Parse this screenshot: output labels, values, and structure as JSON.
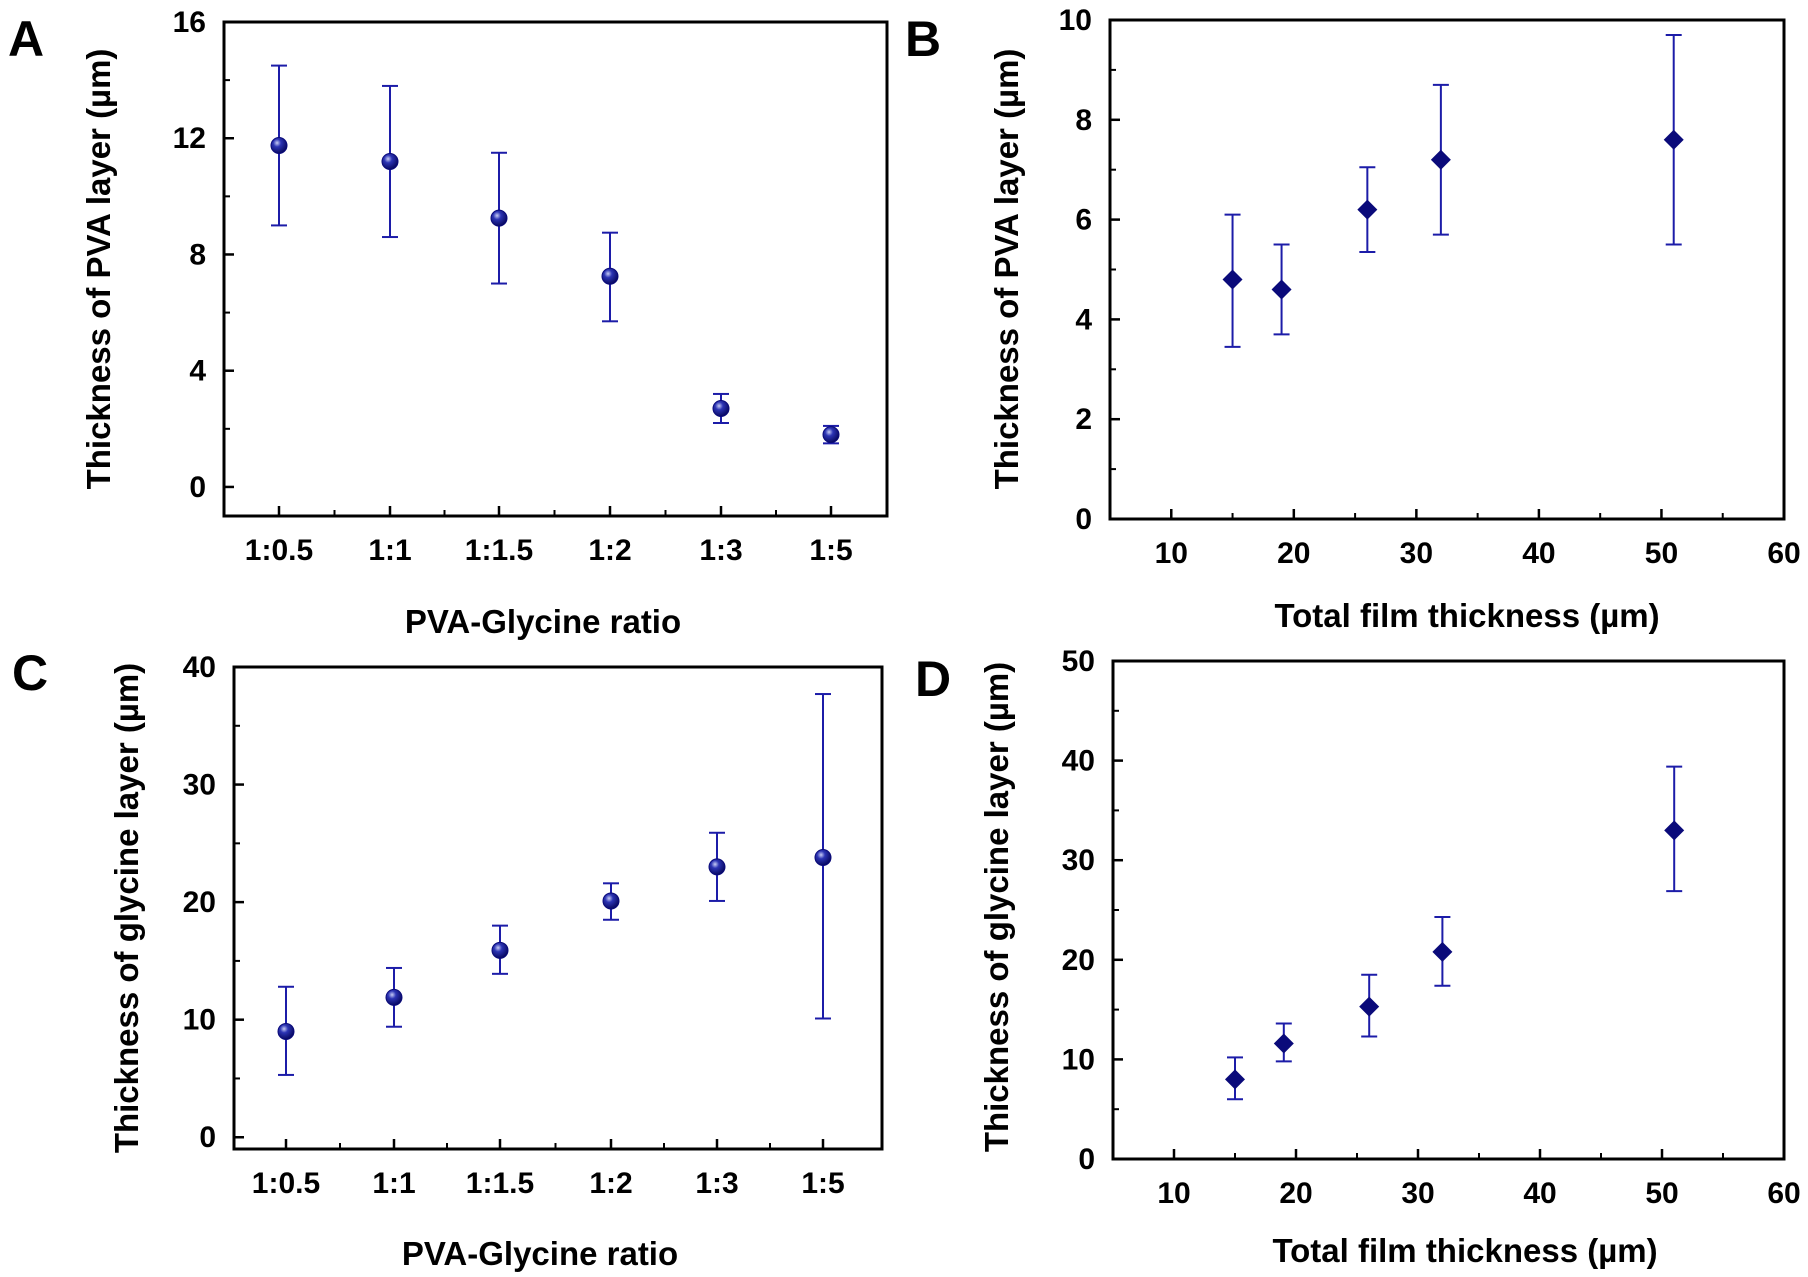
{
  "marker_color": "#0a0a7a",
  "errorbar_color": "#1c1ca8",
  "chart_data": [
    {
      "panel": "A",
      "type": "scatter",
      "marker": "sphere",
      "x_scale": "categorical",
      "categories": [
        "1:0.5",
        "1:1",
        "1:1.5",
        "1:2",
        "1:3",
        "1:5"
      ],
      "values": [
        11.75,
        11.2,
        9.25,
        7.25,
        2.7,
        1.8
      ],
      "err_low": [
        9.0,
        8.6,
        7.0,
        5.7,
        2.2,
        1.5
      ],
      "err_high": [
        14.5,
        13.8,
        11.5,
        8.75,
        3.2,
        2.1
      ],
      "xlabel": "PVA-Glycine ratio",
      "ylabel": "Thickness of PVA layer (µm)",
      "ylim": [
        -1,
        16
      ],
      "yticks": [
        0,
        4,
        8,
        12,
        16
      ],
      "ytick_labels": [
        "0",
        "4",
        "8",
        "12",
        "16"
      ],
      "grid": false
    },
    {
      "panel": "B",
      "type": "scatter",
      "marker": "diamond",
      "x_scale": "linear",
      "x": [
        15,
        19,
        26,
        32,
        51
      ],
      "values": [
        4.8,
        4.6,
        6.2,
        7.2,
        7.6
      ],
      "err_low": [
        3.45,
        3.7,
        5.35,
        5.7,
        5.5
      ],
      "err_high": [
        6.1,
        5.5,
        7.05,
        8.7,
        9.7
      ],
      "xlabel": "Total film thickness (µm)",
      "ylabel": "Thickness of PVA layer (µm)",
      "xlim": [
        5,
        60
      ],
      "ylim": [
        0,
        10
      ],
      "xticks": [
        10,
        20,
        30,
        40,
        50,
        60
      ],
      "xtick_labels": [
        "10",
        "20",
        "30",
        "40",
        "50",
        "60"
      ],
      "yticks": [
        0,
        2,
        4,
        6,
        8,
        10
      ],
      "ytick_labels": [
        "0",
        "2",
        "4",
        "6",
        "8",
        "10"
      ],
      "grid": false
    },
    {
      "panel": "C",
      "type": "scatter",
      "marker": "sphere",
      "x_scale": "categorical",
      "categories": [
        "1:0.5",
        "1:1",
        "1:1.5",
        "1:2",
        "1:3",
        "1:5"
      ],
      "values": [
        9.0,
        11.9,
        15.9,
        20.1,
        23.0,
        23.8
      ],
      "err_low": [
        5.3,
        9.4,
        13.9,
        18.5,
        20.1,
        10.1
      ],
      "err_high": [
        12.8,
        14.4,
        18.0,
        21.6,
        25.9,
        37.7
      ],
      "xlabel": "PVA-Glycine ratio",
      "ylabel": "Thickness of glycine layer (µm)",
      "ylim": [
        -1,
        40
      ],
      "yticks": [
        0,
        10,
        20,
        30,
        40
      ],
      "ytick_labels": [
        "0",
        "10",
        "20",
        "30",
        "40"
      ],
      "grid": false
    },
    {
      "panel": "D",
      "type": "scatter",
      "marker": "diamond",
      "x_scale": "linear",
      "x": [
        15,
        19,
        26,
        32,
        51
      ],
      "values": [
        8.0,
        11.6,
        15.3,
        20.8,
        33.0
      ],
      "err_low": [
        6.0,
        9.8,
        12.3,
        17.4,
        26.9
      ],
      "err_high": [
        10.2,
        13.6,
        18.5,
        24.3,
        39.4
      ],
      "xlabel": "Total film thickness (µm)",
      "ylabel": "Thickness of glycine layer (µm)",
      "xlim": [
        5,
        60
      ],
      "ylim": [
        0,
        50
      ],
      "xticks": [
        10,
        20,
        30,
        40,
        50,
        60
      ],
      "xtick_labels": [
        "10",
        "20",
        "30",
        "40",
        "50",
        "60"
      ],
      "yticks": [
        0,
        10,
        20,
        30,
        40,
        50
      ],
      "ytick_labels": [
        "0",
        "10",
        "20",
        "30",
        "40",
        "50"
      ],
      "grid": false
    }
  ]
}
